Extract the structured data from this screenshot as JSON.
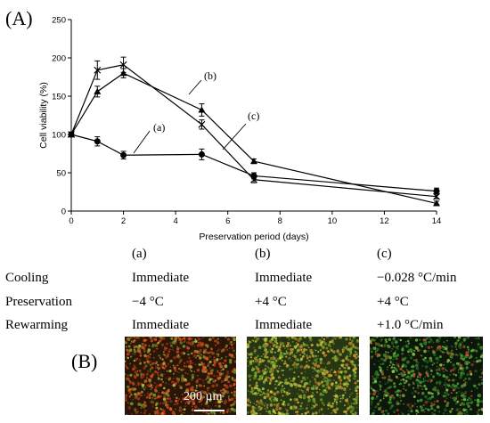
{
  "panel_labels": {
    "a": "(A)",
    "b": "(B)"
  },
  "chart_data": {
    "type": "line",
    "xlabel": "Preservation period (days)",
    "ylabel": "Cell viability (%)",
    "xlim": [
      0,
      14
    ],
    "ylim": [
      0,
      250
    ],
    "xticks": [
      0,
      2,
      4,
      6,
      8,
      10,
      12,
      14
    ],
    "yticks": [
      0,
      50,
      100,
      150,
      200,
      250
    ],
    "grid": false,
    "series": [
      {
        "name": "(a)",
        "marker": "circle",
        "x": [
          0,
          1,
          2,
          5,
          7,
          14
        ],
        "y": [
          100,
          91,
          73,
          74,
          46,
          26
        ],
        "err": [
          3,
          6,
          5,
          7,
          4,
          4
        ]
      },
      {
        "name": "(b)",
        "marker": "x",
        "x": [
          0,
          1,
          2,
          5,
          7,
          14
        ],
        "y": [
          100,
          184,
          191,
          113,
          41,
          19
        ],
        "err": [
          3,
          12,
          10,
          6,
          4,
          3
        ]
      },
      {
        "name": "(c)",
        "marker": "triangle",
        "x": [
          0,
          1,
          2,
          5,
          7,
          14
        ],
        "y": [
          100,
          156,
          180,
          132,
          65,
          10
        ],
        "err": [
          3,
          7,
          6,
          8,
          3,
          3
        ]
      }
    ]
  },
  "table": {
    "columns": [
      "(a)",
      "(b)",
      "(c)"
    ],
    "rows": [
      {
        "label": "Cooling",
        "values": [
          "Immediate",
          "Immediate",
          "−0.028 °C/min"
        ]
      },
      {
        "label": "Preservation",
        "values": [
          "−4 °C",
          "+4 °C",
          "+4 °C"
        ]
      },
      {
        "label": "Rewarming",
        "values": [
          "Immediate",
          "Immediate",
          "+1.0 °C/min"
        ]
      }
    ]
  },
  "scale_bar": "200 µm"
}
